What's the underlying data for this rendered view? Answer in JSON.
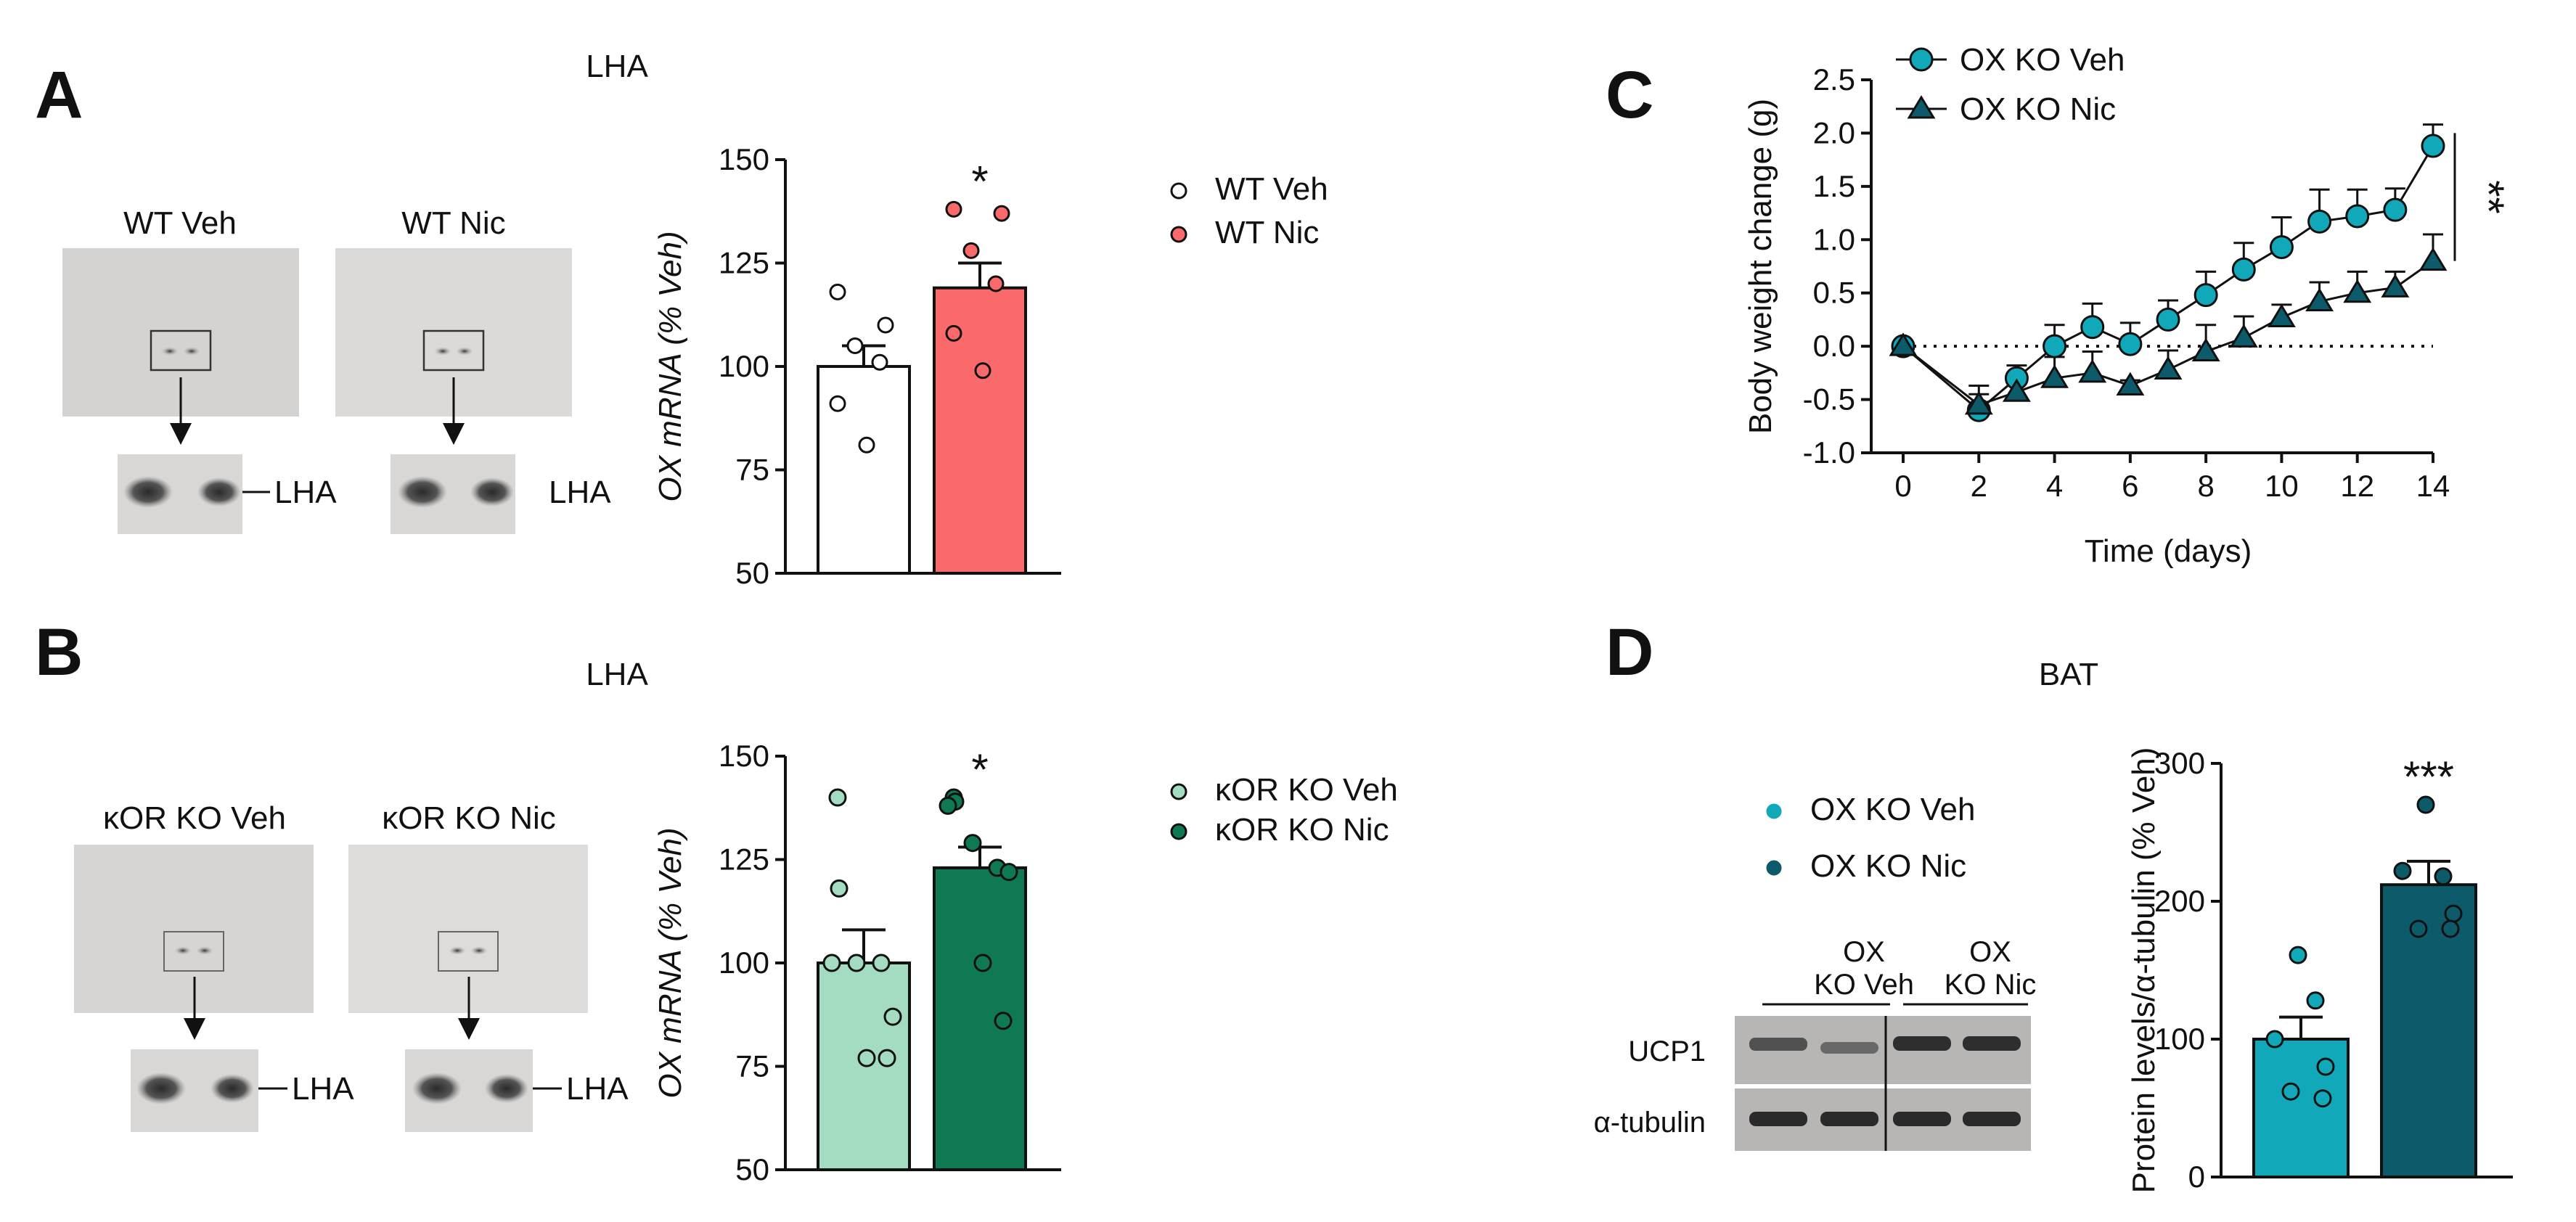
{
  "panels": {
    "A": {
      "letter": "A",
      "region": "LHA",
      "img_left": "WT Veh",
      "img_right": "WT Nic",
      "lha_left": "LHA",
      "lha_right": "LHA"
    },
    "B": {
      "letter": "B",
      "region": "LHA",
      "img_left": "κOR KO Veh",
      "img_right": "κOR KO Nic",
      "lha_left": "LHA",
      "lha_right": "LHA"
    },
    "C": {
      "letter": "C"
    },
    "D": {
      "letter": "D",
      "region": "BAT",
      "blot_groups": [
        "OX",
        "KO Veh",
        "OX",
        "KO Nic"
      ],
      "blot_rows": [
        "UCP1",
        "α-tubulin"
      ]
    }
  },
  "colors": {
    "wt_veh": "#ffffff",
    "wt_nic": "#fb6a6a",
    "kor_veh": "#a3dcc1",
    "kor_nic": "#0f7a52",
    "ox_veh": "#11a9b9",
    "ox_nic": "#0d5b6a"
  },
  "chart_data": [
    {
      "id": "A",
      "type": "bar",
      "categories": [
        "WT Veh",
        "WT Nic"
      ],
      "values": [
        100,
        119
      ],
      "errors": [
        5,
        6
      ],
      "points": [
        [
          118,
          110,
          105,
          101,
          91,
          81
        ],
        [
          138,
          137,
          128,
          120,
          108,
          99
        ]
      ],
      "ylabel": "OX mRNA (% Veh)",
      "ylim": [
        50,
        150
      ],
      "yticks": [
        50,
        75,
        100,
        125,
        150
      ],
      "significance": [
        "",
        "*"
      ],
      "legend": [
        "WT Veh",
        "WT Nic"
      ]
    },
    {
      "id": "B",
      "type": "bar",
      "categories": [
        "κOR KO Veh",
        "κOR KO Nic"
      ],
      "values": [
        100,
        123
      ],
      "errors": [
        8,
        5
      ],
      "points": [
        [
          140,
          118,
          100,
          100,
          100,
          87,
          77,
          77
        ],
        [
          140,
          139,
          138,
          129,
          123,
          122,
          100,
          86
        ]
      ],
      "ylabel": "OX mRNA (% Veh)",
      "ylim": [
        50,
        150
      ],
      "yticks": [
        50,
        75,
        100,
        125,
        150
      ],
      "significance": [
        "",
        "*"
      ],
      "legend": [
        "κOR KO Veh",
        "κOR KO Nic"
      ]
    },
    {
      "id": "C",
      "type": "line",
      "x": [
        0,
        2,
        3,
        4,
        5,
        6,
        7,
        8,
        9,
        10,
        11,
        12,
        13,
        14
      ],
      "series": [
        {
          "name": "OX KO Veh",
          "values": [
            0,
            -0.6,
            -0.3,
            0,
            0.18,
            0.02,
            0.25,
            0.48,
            0.72,
            0.93,
            1.17,
            1.22,
            1.28,
            1.88
          ],
          "errors": [
            0,
            0.15,
            0.12,
            0.2,
            0.22,
            0.2,
            0.18,
            0.22,
            0.25,
            0.28,
            0.3,
            0.25,
            0.2,
            0.2
          ]
        },
        {
          "name": "OX KO Nic",
          "values": [
            0,
            -0.55,
            -0.43,
            -0.3,
            -0.25,
            -0.37,
            -0.22,
            -0.05,
            0.08,
            0.27,
            0.42,
            0.5,
            0.55,
            0.8
          ],
          "errors": [
            0,
            0.18,
            0.15,
            0.2,
            0.2,
            0.05,
            0.18,
            0.25,
            0.2,
            0.12,
            0.18,
            0.2,
            0.15,
            0.25
          ]
        }
      ],
      "xlabel": "Time (days)",
      "ylabel": "Body weight change (g)",
      "xlim": [
        0,
        14
      ],
      "ylim": [
        -1.0,
        2.5
      ],
      "xticks": [
        0,
        2,
        4,
        6,
        8,
        10,
        12,
        14
      ],
      "yticks": [
        -1.0,
        -0.5,
        0.0,
        0.5,
        1.0,
        1.5,
        2.0,
        2.5
      ],
      "significance": "**",
      "legend": [
        "OX KO Veh",
        "OX KO Nic"
      ]
    },
    {
      "id": "D",
      "type": "bar",
      "categories": [
        "OX KO Veh",
        "OX KO Nic"
      ],
      "values": [
        100,
        212
      ],
      "errors": [
        16,
        17
      ],
      "points": [
        [
          161,
          128,
          100,
          80,
          62,
          57
        ],
        [
          270,
          218,
          222,
          191,
          180,
          180
        ]
      ],
      "ylabel": "Protein levels/α-tubulin (% Veh)",
      "ylim": [
        0,
        300
      ],
      "yticks": [
        0,
        100,
        200,
        300
      ],
      "significance": [
        "",
        "***"
      ],
      "legend": [
        "OX KO Veh",
        "OX KO Nic"
      ]
    }
  ]
}
